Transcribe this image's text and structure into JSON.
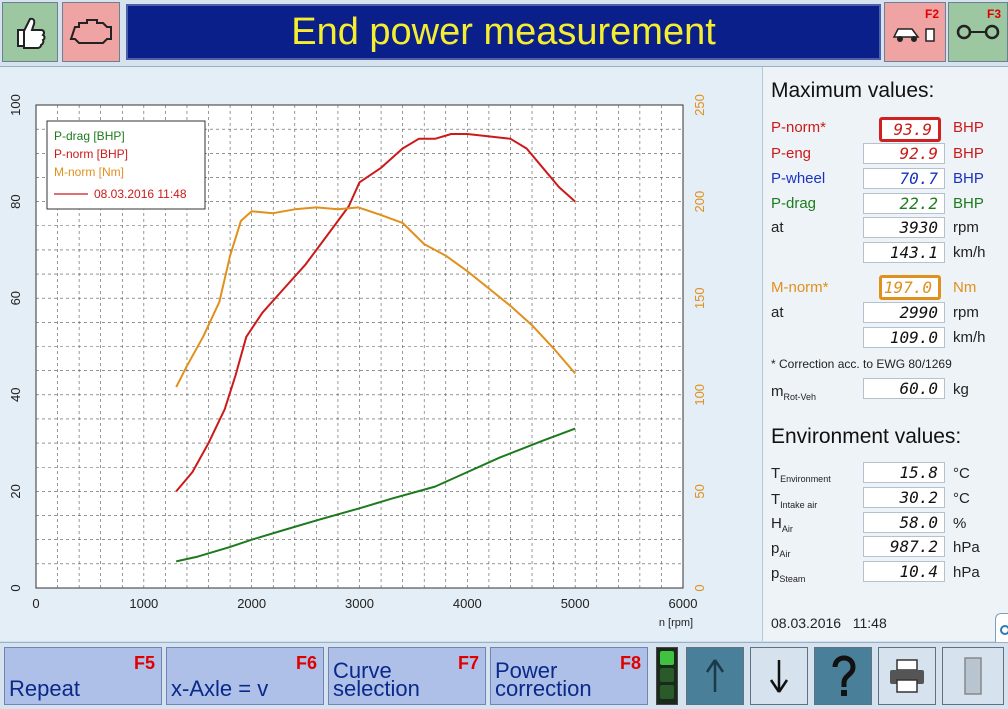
{
  "header": {
    "title": "End power measurement",
    "f2_label": "F2",
    "f3_label": "F3"
  },
  "icons": [
    "thumbs-up-icon",
    "engine-icon",
    "car-on-dyno-icon",
    "tire-icon",
    "arrow-up-icon",
    "arrow-down-icon",
    "question-icon",
    "printer-icon",
    "exit-door-icon",
    "side-tab-icon"
  ],
  "colors": {
    "p_drag": "#1e7a1e",
    "p_norm": "#cc1a1a",
    "m_norm": "#e0901c",
    "p_wheel": "#1a33c0",
    "title_bg": "#0b1f8a",
    "title_text": "#f5ee2e"
  },
  "chart_data": {
    "type": "line",
    "xlabel": "n [rpm]",
    "xlim": [
      0,
      6000
    ],
    "ylim_left": [
      0,
      100
    ],
    "ylim_right": [
      0,
      250
    ],
    "x_ticks": [
      "0",
      "1000",
      "2000",
      "3000",
      "4000",
      "5000",
      "6000"
    ],
    "y_ticks_left": [
      "0",
      "20",
      "40",
      "60",
      "80",
      "100"
    ],
    "y_ticks_right": [
      "0",
      "50",
      "100",
      "150",
      "200",
      "250"
    ],
    "grid": true,
    "legend_position": "top-left",
    "legend": [
      "P-drag [BHP]",
      "P-norm [BHP]",
      "M-norm [Nm]"
    ],
    "legend_date": "08.03.2016 11:48",
    "series": [
      {
        "name": "P-drag [BHP]",
        "axis": "left",
        "color": "#1e7a1e",
        "x": [
          1300,
          1500,
          1800,
          2000,
          2300,
          2600,
          3000,
          3300,
          3700,
          4000,
          4300,
          4700,
          5000
        ],
        "y": [
          5.5,
          6.5,
          8.5,
          10.0,
          12.0,
          14.0,
          16.5,
          18.5,
          21.0,
          24.0,
          27.0,
          30.5,
          33.0
        ]
      },
      {
        "name": "P-norm [BHP]",
        "axis": "left",
        "color": "#cc1a1a",
        "x": [
          1300,
          1450,
          1600,
          1750,
          1850,
          1950,
          2100,
          2300,
          2500,
          2700,
          2900,
          3000,
          3200,
          3400,
          3550,
          3700,
          3850,
          4000,
          4200,
          4400,
          4550,
          4700,
          4850,
          5000
        ],
        "y": [
          20,
          24,
          30,
          37,
          44,
          52,
          57,
          62,
          67,
          73,
          79,
          84,
          87,
          91,
          93,
          93,
          94,
          94,
          93.5,
          93,
          91,
          87,
          83,
          80
        ]
      },
      {
        "name": "M-norm [Nm]",
        "axis": "right",
        "color": "#e0901c",
        "x": [
          1300,
          1400,
          1550,
          1700,
          1800,
          1900,
          2000,
          2200,
          2400,
          2600,
          2800,
          2990,
          3200,
          3400,
          3600,
          3800,
          4000,
          4200,
          4400,
          4600,
          4800,
          5000
        ],
        "y": [
          104,
          115,
          130,
          148,
          172,
          190,
          195,
          194,
          196,
          197,
          196,
          197,
          193,
          189,
          178,
          172,
          164,
          155,
          146,
          136,
          124,
          111
        ]
      }
    ]
  },
  "max_values": {
    "heading": "Maximum values:",
    "rows": [
      {
        "label": "P-norm*",
        "value": "93.9",
        "unit": "BHP"
      },
      {
        "label": "P-eng",
        "value": "92.9",
        "unit": "BHP"
      },
      {
        "label": "P-wheel",
        "value": "70.7",
        "unit": "BHP"
      },
      {
        "label": "P-drag",
        "value": "22.2",
        "unit": "BHP"
      },
      {
        "label": "at",
        "value": "3930",
        "unit": "rpm"
      },
      {
        "label": "",
        "value": "143.1",
        "unit": "km/h"
      },
      {
        "label": "M-norm*",
        "value": "197.0",
        "unit": "Nm"
      },
      {
        "label": "at",
        "value": "2990",
        "unit": "rpm"
      },
      {
        "label": "",
        "value": "109.0",
        "unit": "km/h"
      }
    ],
    "footnote": "* Correction acc. to EWG 80/1269",
    "mrot_label": "m",
    "mrot_sub": "Rot-Veh",
    "mrot_value": "60.0",
    "mrot_unit": "kg"
  },
  "environment": {
    "heading": "Environment values:",
    "rows": [
      {
        "label": "T",
        "sub": "Environment",
        "value": "15.8",
        "unit": "°C"
      },
      {
        "label": "T",
        "sub": "Intake air",
        "value": "30.2",
        "unit": "°C"
      },
      {
        "label": "H",
        "sub": "Air",
        "value": "58.0",
        "unit": "%"
      },
      {
        "label": "p",
        "sub": "Air",
        "value": "987.2",
        "unit": "hPa"
      },
      {
        "label": "p",
        "sub": "Steam",
        "value": "10.4",
        "unit": "hPa"
      }
    ],
    "timestamp": "08.03.2016   11:48"
  },
  "footer": {
    "buttons": [
      {
        "label": "Repeat",
        "key": "F5"
      },
      {
        "label": "x-Axle = v",
        "key": "F6"
      },
      {
        "label": "Curve selection",
        "key": "F7"
      },
      {
        "label": "Power correction",
        "key": "F8"
      }
    ]
  }
}
